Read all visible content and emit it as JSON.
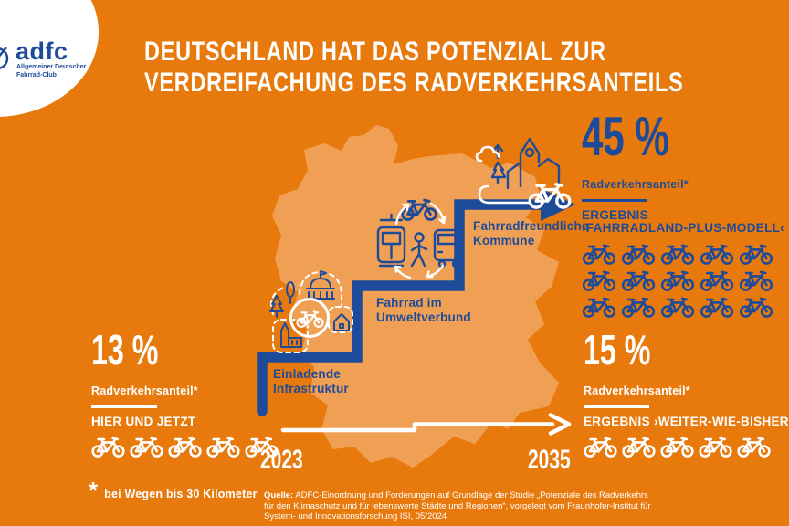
{
  "colors": {
    "background": "#E87A0D",
    "map": "#F0A054",
    "blue": "#1E4B99",
    "white": "#FFFFFF"
  },
  "logo": {
    "brand": "adfc",
    "org_line1": "Allgemeiner Deutscher",
    "org_line2": "Fahrrad-Club"
  },
  "title": {
    "line1": "DEUTSCHLAND HAT DAS POTENZIAL ZUR",
    "line2": "VERDREIFACHUNG DES RADVERKEHRSANTEILS"
  },
  "scenario_now": {
    "value": "13 %",
    "label": "Radverkehrsanteil*",
    "sublabel": "HIER UND JETZT",
    "bike_count": 5
  },
  "scenario_plus": {
    "value": "45 %",
    "label": "Radverkehrsanteil*",
    "result_line1": "ERGEBNIS",
    "result_line2": "›FAHRRADLAND-PLUS-MODELL‹",
    "bike_count": 15
  },
  "scenario_bau": {
    "value": "15 %",
    "label": "Radverkehrsanteil*",
    "result": "ERGEBNIS ›WEITER-WIE-BISHER‹",
    "bike_count": 5
  },
  "steps": {
    "step1": {
      "line1": "Einladende",
      "line2": "Infrastruktur"
    },
    "step2": {
      "line1": "Fahrrad im",
      "line2": "Umweltverbund"
    },
    "step3": {
      "line1": "Fahrradfreundliche",
      "line2": "Kommune"
    }
  },
  "timeline": {
    "start_year": "2023",
    "end_year": "2035"
  },
  "footnote": {
    "asterisk": "*",
    "text": "bei Wegen bis 30 Kilometer"
  },
  "source": {
    "prefix": "Quelle:",
    "text": "ADFC-Einordnung und Forderungen auf Grundlage der Studie „Potenziale des Radverkehrs für den Klimaschutz und für lebenswerte Städte und Regionen“, vorgelegt vom Fraunhofer-Institut für System- und Innovationsforschung ISI, 05/2024"
  },
  "icons": {
    "bike": "bike-icon",
    "step1": "inviting-infrastructure-icon",
    "step2": "transport-mix-icon",
    "step3": "bike-friendly-community-icon"
  },
  "chart_data": {
    "type": "diagram",
    "scenarios": [
      {
        "name": "HIER UND JETZT",
        "year": "2023",
        "share_percent": 13
      },
      {
        "name": "ERGEBNIS ›FAHRRADLAND-PLUS-MODELL‹",
        "year": "2035",
        "share_percent": 45
      },
      {
        "name": "ERGEBNIS ›WEITER-WIE-BISHER‹",
        "year": "2035",
        "share_percent": 15
      }
    ]
  }
}
